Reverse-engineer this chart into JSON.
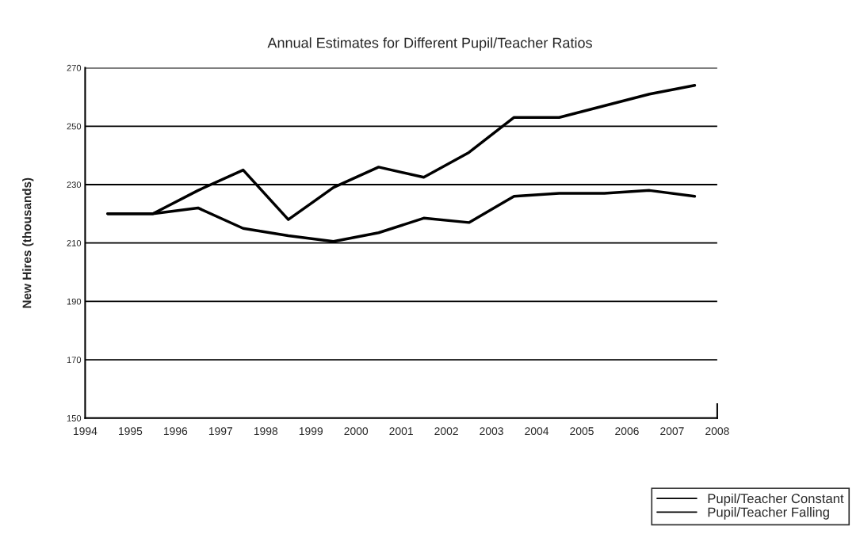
{
  "chart_data": {
    "type": "line",
    "title": "Annual Estimates for Different Pupil/Teacher Ratios",
    "ylabel": "New Hires (thousands)",
    "x": [
      1994.5,
      1995.5,
      1996.5,
      1997.5,
      1998.5,
      1999.5,
      2000.5,
      2001.5,
      2002.5,
      2003.5,
      2004.5,
      2005.5,
      2006.5,
      2007.5
    ],
    "series": [
      {
        "name": "Pupil/Teacher Constant",
        "color": "#000000",
        "values": [
          220,
          220,
          222,
          215,
          212.5,
          210.5,
          213.5,
          218.5,
          217,
          226,
          227,
          227,
          228,
          226
        ]
      },
      {
        "name": "Pupil/Teacher Falling",
        "color": "#000000",
        "values": [
          220,
          220,
          228,
          235,
          218,
          229,
          236,
          232.5,
          241,
          253,
          253,
          257,
          261,
          264
        ]
      }
    ],
    "xlim": [
      1994,
      2008
    ],
    "xticks": [
      1994,
      1995,
      1996,
      1997,
      1998,
      1999,
      2000,
      2001,
      2002,
      2003,
      2004,
      2005,
      2006,
      2007,
      2008
    ],
    "ylim": [
      150,
      270
    ],
    "yticks": [
      150,
      170,
      190,
      210,
      230,
      250,
      270
    ],
    "grid": "y",
    "legend": "bottom right",
    "marker": "none",
    "line_style": "solid"
  }
}
